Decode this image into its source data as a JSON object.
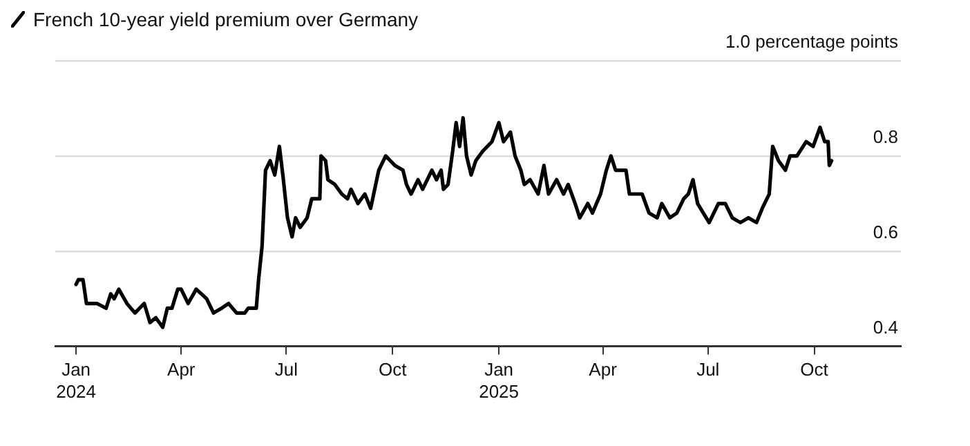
{
  "chart_data": {
    "type": "line",
    "title": "French 10-year yield premium over Germany",
    "x": [
      "2024-01-01",
      "2024-01-03",
      "2024-01-07",
      "2024-01-10",
      "2024-01-19",
      "2024-01-27",
      "2024-01-31",
      "2024-02-03",
      "2024-02-07",
      "2024-02-14",
      "2024-02-21",
      "2024-02-29",
      "2024-03-05",
      "2024-03-10",
      "2024-03-16",
      "2024-03-20",
      "2024-03-24",
      "2024-03-29",
      "2024-04-01",
      "2024-04-07",
      "2024-04-14",
      "2024-04-23",
      "2024-04-29",
      "2024-05-06",
      "2024-05-12",
      "2024-05-19",
      "2024-05-26",
      "2024-05-29",
      "2024-06-05",
      "2024-06-07",
      "2024-06-10",
      "2024-06-13",
      "2024-06-17",
      "2024-06-21",
      "2024-06-25",
      "2024-06-28",
      "2024-07-02",
      "2024-07-06",
      "2024-07-09",
      "2024-07-13",
      "2024-07-19",
      "2024-07-23",
      "2024-07-30",
      "2024-07-31",
      "2024-08-04",
      "2024-08-06",
      "2024-08-12",
      "2024-08-18",
      "2024-08-23",
      "2024-08-26",
      "2024-09-01",
      "2024-09-07",
      "2024-09-12",
      "2024-09-19",
      "2024-09-25",
      "2024-09-29",
      "2024-10-03",
      "2024-10-10",
      "2024-10-13",
      "2024-10-17",
      "2024-10-23",
      "2024-10-27",
      "2024-11-04",
      "2024-11-08",
      "2024-11-12",
      "2024-11-14",
      "2024-11-18",
      "2024-11-22",
      "2024-11-25",
      "2024-11-28",
      "2024-12-01",
      "2024-12-04",
      "2024-12-08",
      "2024-12-12",
      "2024-12-18",
      "2024-12-26",
      "2025-01-01",
      "2025-01-05",
      "2025-01-11",
      "2025-01-15",
      "2025-01-20",
      "2025-01-23",
      "2025-01-28",
      "2025-02-04",
      "2025-02-09",
      "2025-02-13",
      "2025-02-20",
      "2025-02-26",
      "2025-03-02",
      "2025-03-08",
      "2025-03-12",
      "2025-03-19",
      "2025-03-23",
      "2025-03-30",
      "2025-04-04",
      "2025-04-08",
      "2025-04-12",
      "2025-04-16",
      "2025-04-21",
      "2025-04-24",
      "2025-05-05",
      "2025-05-11",
      "2025-05-18",
      "2025-05-22",
      "2025-05-29",
      "2025-06-04",
      "2025-06-10",
      "2025-06-14",
      "2025-06-18",
      "2025-06-22",
      "2025-06-27",
      "2025-07-02",
      "2025-07-10",
      "2025-07-16",
      "2025-07-22",
      "2025-07-29",
      "2025-08-05",
      "2025-08-12",
      "2025-08-17",
      "2025-08-23",
      "2025-08-26",
      "2025-08-31",
      "2025-09-06",
      "2025-09-10",
      "2025-09-16",
      "2025-09-24",
      "2025-09-30",
      "2025-10-06",
      "2025-10-10",
      "2025-10-13",
      "2025-10-14",
      "2025-10-16"
    ],
    "series": [
      {
        "color": "#000000",
        "values": [
          0.53,
          0.54,
          0.54,
          0.49,
          0.49,
          0.48,
          0.51,
          0.5,
          0.52,
          0.49,
          0.47,
          0.49,
          0.45,
          0.46,
          0.44,
          0.48,
          0.48,
          0.52,
          0.52,
          0.49,
          0.52,
          0.5,
          0.47,
          0.48,
          0.49,
          0.47,
          0.47,
          0.48,
          0.48,
          0.54,
          0.61,
          0.77,
          0.79,
          0.76,
          0.82,
          0.76,
          0.67,
          0.63,
          0.67,
          0.65,
          0.67,
          0.71,
          0.71,
          0.8,
          0.79,
          0.75,
          0.74,
          0.72,
          0.71,
          0.73,
          0.7,
          0.72,
          0.69,
          0.77,
          0.8,
          0.79,
          0.78,
          0.77,
          0.74,
          0.72,
          0.75,
          0.73,
          0.77,
          0.75,
          0.77,
          0.73,
          0.74,
          0.81,
          0.87,
          0.82,
          0.88,
          0.8,
          0.76,
          0.79,
          0.81,
          0.83,
          0.87,
          0.83,
          0.85,
          0.8,
          0.77,
          0.74,
          0.75,
          0.72,
          0.78,
          0.72,
          0.75,
          0.72,
          0.74,
          0.7,
          0.67,
          0.7,
          0.68,
          0.72,
          0.77,
          0.8,
          0.77,
          0.77,
          0.77,
          0.72,
          0.72,
          0.68,
          0.67,
          0.7,
          0.67,
          0.68,
          0.71,
          0.72,
          0.75,
          0.7,
          0.68,
          0.66,
          0.7,
          0.7,
          0.67,
          0.66,
          0.67,
          0.66,
          0.69,
          0.72,
          0.82,
          0.79,
          0.77,
          0.8,
          0.8,
          0.83,
          0.82,
          0.86,
          0.83,
          0.83,
          0.78,
          0.79
        ]
      }
    ],
    "xlim": [
      "2023-12-14",
      "2025-12-15"
    ],
    "xticks": [
      {
        "value": "2024-01-01",
        "label": "Jan\n2024"
      },
      {
        "value": "2024-04-01",
        "label": "Apr"
      },
      {
        "value": "2024-07-01",
        "label": "Jul"
      },
      {
        "value": "2024-10-01",
        "label": "Oct"
      },
      {
        "value": "2025-01-01",
        "label": "Jan\n2025"
      },
      {
        "value": "2025-04-01",
        "label": "Apr"
      },
      {
        "value": "2025-07-01",
        "label": "Jul"
      },
      {
        "value": "2025-10-01",
        "label": "Oct"
      }
    ],
    "ylim": [
      0.4,
      1.0
    ],
    "yticks": [
      0.4,
      0.6,
      0.8,
      {
        "value": 1.0,
        "label": "1.0 percentage points"
      }
    ],
    "grid": "y",
    "legend": false,
    "marker": "none",
    "line_style": "solid"
  }
}
